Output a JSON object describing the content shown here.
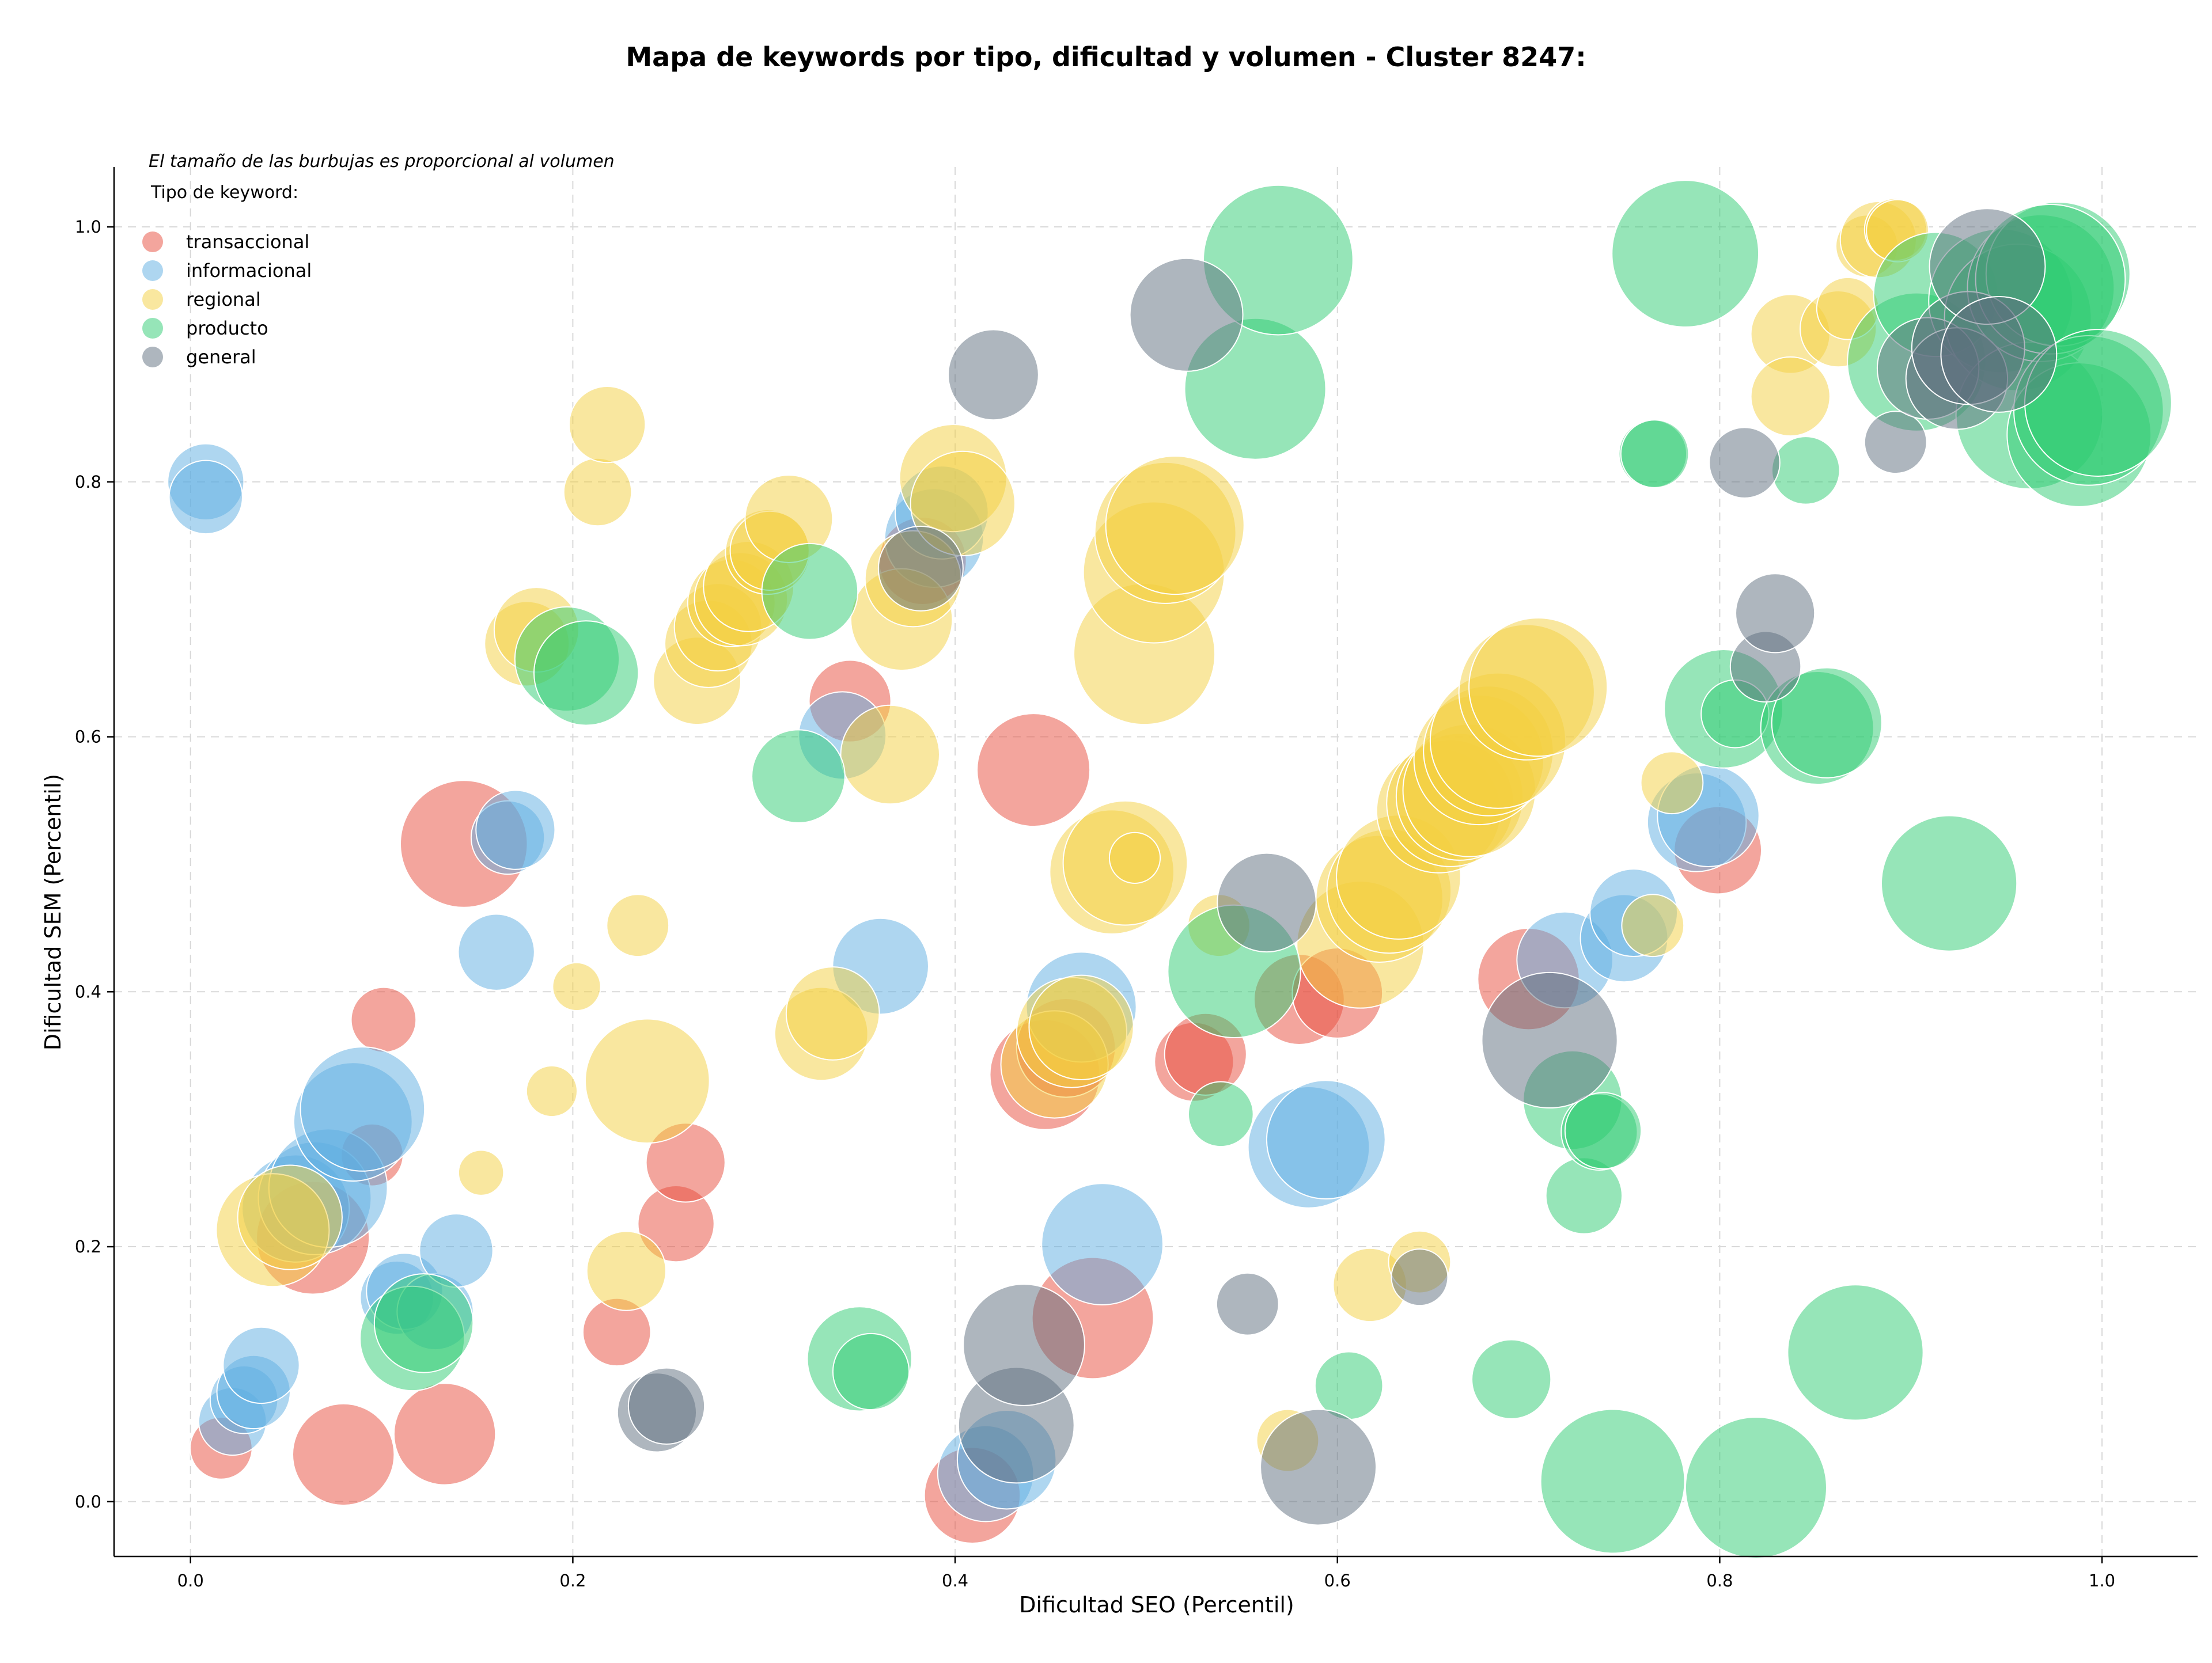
{
  "chart_data": {
    "type": "scatter",
    "title": "Mapa de keywords por tipo, dificultad y volumen - Cluster 8247:",
    "xlabel": "Dificultad SEO (Percentil)",
    "ylabel": "Dificultad SEM (Percentil)",
    "xlim": [
      -0.04,
      1.05
    ],
    "ylim": [
      -0.043,
      1.047
    ],
    "x_ticks": [
      "0.0",
      "0.2",
      "0.4",
      "0.6",
      "0.8",
      "1.0"
    ],
    "y_ticks": [
      "0.0",
      "0.2",
      "0.4",
      "0.6",
      "0.8",
      "1.0"
    ],
    "grid": true,
    "note": "El tamaño de las burbujas es proporcional al volumen",
    "legend": {
      "title": "Tipo de keyword:",
      "position": "top-left"
    },
    "series": [
      {
        "name": "transaccional",
        "color": "#e74c3c",
        "points": [
          {
            "x": 0.016,
            "y": 0.042,
            "r": 22
          },
          {
            "x": 0.08,
            "y": 0.037,
            "r": 36
          },
          {
            "x": 0.133,
            "y": 0.053,
            "r": 36
          },
          {
            "x": 0.064,
            "y": 0.207,
            "r": 40
          },
          {
            "x": 0.095,
            "y": 0.272,
            "r": 22
          },
          {
            "x": 0.101,
            "y": 0.378,
            "r": 23
          },
          {
            "x": 0.143,
            "y": 0.516,
            "r": 45
          },
          {
            "x": 0.223,
            "y": 0.133,
            "r": 24
          },
          {
            "x": 0.254,
            "y": 0.218,
            "r": 27
          },
          {
            "x": 0.259,
            "y": 0.266,
            "r": 28
          },
          {
            "x": 0.345,
            "y": 0.628,
            "r": 29
          },
          {
            "x": 0.409,
            "y": 0.005,
            "r": 34
          },
          {
            "x": 0.441,
            "y": 0.574,
            "r": 40
          },
          {
            "x": 0.447,
            "y": 0.335,
            "r": 39
          },
          {
            "x": 0.458,
            "y": 0.356,
            "r": 35
          },
          {
            "x": 0.472,
            "y": 0.144,
            "r": 43
          },
          {
            "x": 0.525,
            "y": 0.345,
            "r": 28
          },
          {
            "x": 0.531,
            "y": 0.351,
            "r": 29
          },
          {
            "x": 0.58,
            "y": 0.394,
            "r": 32
          },
          {
            "x": 0.6,
            "y": 0.399,
            "r": 32
          },
          {
            "x": 0.7,
            "y": 0.41,
            "r": 36
          },
          {
            "x": 0.799,
            "y": 0.511,
            "r": 31
          },
          {
            "x": 0.383,
            "y": 0.738,
            "r": 31
          }
        ]
      },
      {
        "name": "informacional",
        "color": "#5dade2",
        "points": [
          {
            "x": 0.008,
            "y": 0.8,
            "r": 27
          },
          {
            "x": 0.008,
            "y": 0.788,
            "r": 26
          },
          {
            "x": 0.022,
            "y": 0.063,
            "r": 24
          },
          {
            "x": 0.028,
            "y": 0.08,
            "r": 24
          },
          {
            "x": 0.033,
            "y": 0.086,
            "r": 26
          },
          {
            "x": 0.037,
            "y": 0.107,
            "r": 27
          },
          {
            "x": 0.055,
            "y": 0.23,
            "r": 38
          },
          {
            "x": 0.065,
            "y": 0.238,
            "r": 40
          },
          {
            "x": 0.072,
            "y": 0.246,
            "r": 42
          },
          {
            "x": 0.085,
            "y": 0.298,
            "r": 42
          },
          {
            "x": 0.09,
            "y": 0.308,
            "r": 44
          },
          {
            "x": 0.108,
            "y": 0.16,
            "r": 26
          },
          {
            "x": 0.112,
            "y": 0.165,
            "r": 27
          },
          {
            "x": 0.128,
            "y": 0.149,
            "r": 27
          },
          {
            "x": 0.139,
            "y": 0.197,
            "r": 26
          },
          {
            "x": 0.16,
            "y": 0.431,
            "r": 27
          },
          {
            "x": 0.166,
            "y": 0.521,
            "r": 26
          },
          {
            "x": 0.17,
            "y": 0.527,
            "r": 28
          },
          {
            "x": 0.341,
            "y": 0.601,
            "r": 31
          },
          {
            "x": 0.361,
            "y": 0.42,
            "r": 34
          },
          {
            "x": 0.389,
            "y": 0.756,
            "r": 35
          },
          {
            "x": 0.393,
            "y": 0.776,
            "r": 33
          },
          {
            "x": 0.416,
            "y": 0.022,
            "r": 34
          },
          {
            "x": 0.427,
            "y": 0.033,
            "r": 35
          },
          {
            "x": 0.466,
            "y": 0.388,
            "r": 39
          },
          {
            "x": 0.477,
            "y": 0.202,
            "r": 43
          },
          {
            "x": 0.585,
            "y": 0.278,
            "r": 43
          },
          {
            "x": 0.594,
            "y": 0.284,
            "r": 42
          },
          {
            "x": 0.719,
            "y": 0.425,
            "r": 34
          },
          {
            "x": 0.75,
            "y": 0.442,
            "r": 31
          },
          {
            "x": 0.755,
            "y": 0.462,
            "r": 31
          },
          {
            "x": 0.788,
            "y": 0.533,
            "r": 35
          },
          {
            "x": 0.794,
            "y": 0.538,
            "r": 36
          }
        ]
      },
      {
        "name": "regional",
        "color": "#f4d03f",
        "points": [
          {
            "x": 0.043,
            "y": 0.213,
            "r": 40
          },
          {
            "x": 0.052,
            "y": 0.223,
            "r": 37
          },
          {
            "x": 0.152,
            "y": 0.258,
            "r": 16
          },
          {
            "x": 0.176,
            "y": 0.673,
            "r": 30
          },
          {
            "x": 0.181,
            "y": 0.684,
            "r": 30
          },
          {
            "x": 0.189,
            "y": 0.322,
            "r": 18
          },
          {
            "x": 0.202,
            "y": 0.404,
            "r": 17
          },
          {
            "x": 0.213,
            "y": 0.792,
            "r": 24
          },
          {
            "x": 0.218,
            "y": 0.845,
            "r": 27
          },
          {
            "x": 0.228,
            "y": 0.181,
            "r": 28
          },
          {
            "x": 0.234,
            "y": 0.452,
            "r": 22
          },
          {
            "x": 0.239,
            "y": 0.33,
            "r": 44
          },
          {
            "x": 0.265,
            "y": 0.644,
            "r": 31
          },
          {
            "x": 0.271,
            "y": 0.673,
            "r": 31
          },
          {
            "x": 0.276,
            "y": 0.686,
            "r": 31
          },
          {
            "x": 0.283,
            "y": 0.705,
            "r": 31
          },
          {
            "x": 0.288,
            "y": 0.708,
            "r": 33
          },
          {
            "x": 0.292,
            "y": 0.718,
            "r": 32
          },
          {
            "x": 0.302,
            "y": 0.745,
            "r": 30
          },
          {
            "x": 0.303,
            "y": 0.746,
            "r": 28
          },
          {
            "x": 0.313,
            "y": 0.771,
            "r": 31
          },
          {
            "x": 0.33,
            "y": 0.367,
            "r": 33
          },
          {
            "x": 0.336,
            "y": 0.383,
            "r": 33
          },
          {
            "x": 0.366,
            "y": 0.586,
            "r": 35
          },
          {
            "x": 0.372,
            "y": 0.692,
            "r": 36
          },
          {
            "x": 0.378,
            "y": 0.724,
            "r": 34
          },
          {
            "x": 0.399,
            "y": 0.803,
            "r": 38
          },
          {
            "x": 0.404,
            "y": 0.783,
            "r": 37
          },
          {
            "x": 0.452,
            "y": 0.343,
            "r": 38
          },
          {
            "x": 0.461,
            "y": 0.368,
            "r": 39
          },
          {
            "x": 0.466,
            "y": 0.372,
            "r": 37
          },
          {
            "x": 0.482,
            "y": 0.494,
            "r": 44
          },
          {
            "x": 0.489,
            "y": 0.501,
            "r": 44
          },
          {
            "x": 0.494,
            "y": 0.505,
            "r": 18
          },
          {
            "x": 0.499,
            "y": 0.665,
            "r": 50
          },
          {
            "x": 0.504,
            "y": 0.729,
            "r": 50
          },
          {
            "x": 0.51,
            "y": 0.76,
            "r": 50
          },
          {
            "x": 0.515,
            "y": 0.766,
            "r": 49
          },
          {
            "x": 0.538,
            "y": 0.452,
            "r": 22
          },
          {
            "x": 0.574,
            "y": 0.048,
            "r": 22
          },
          {
            "x": 0.612,
            "y": 0.437,
            "r": 45
          },
          {
            "x": 0.617,
            "y": 0.17,
            "r": 26
          },
          {
            "x": 0.622,
            "y": 0.473,
            "r": 45
          },
          {
            "x": 0.627,
            "y": 0.479,
            "r": 44
          },
          {
            "x": 0.632,
            "y": 0.49,
            "r": 44
          },
          {
            "x": 0.643,
            "y": 0.188,
            "r": 22
          },
          {
            "x": 0.653,
            "y": 0.542,
            "r": 44
          },
          {
            "x": 0.659,
            "y": 0.548,
            "r": 45
          },
          {
            "x": 0.664,
            "y": 0.553,
            "r": 45
          },
          {
            "x": 0.669,
            "y": 0.558,
            "r": 47
          },
          {
            "x": 0.674,
            "y": 0.582,
            "r": 46
          },
          {
            "x": 0.679,
            "y": 0.589,
            "r": 46
          },
          {
            "x": 0.684,
            "y": 0.597,
            "r": 48
          },
          {
            "x": 0.699,
            "y": 0.635,
            "r": 48
          },
          {
            "x": 0.705,
            "y": 0.639,
            "r": 49
          },
          {
            "x": 0.775,
            "y": 0.564,
            "r": 22
          },
          {
            "x": 0.765,
            "y": 0.452,
            "r": 22
          },
          {
            "x": 0.837,
            "y": 0.916,
            "r": 28
          },
          {
            "x": 0.837,
            "y": 0.867,
            "r": 28
          },
          {
            "x": 0.862,
            "y": 0.92,
            "r": 27
          },
          {
            "x": 0.867,
            "y": 0.936,
            "r": 22
          },
          {
            "x": 0.877,
            "y": 0.985,
            "r": 22
          },
          {
            "x": 0.883,
            "y": 0.99,
            "r": 27
          },
          {
            "x": 0.892,
            "y": 0.998,
            "r": 22
          },
          {
            "x": 0.893,
            "y": 0.997,
            "r": 22
          }
        ]
      },
      {
        "name": "producto",
        "color": "#2ecc71",
        "points": [
          {
            "x": 0.116,
            "y": 0.128,
            "r": 37
          },
          {
            "x": 0.122,
            "y": 0.14,
            "r": 35
          },
          {
            "x": 0.197,
            "y": 0.661,
            "r": 37
          },
          {
            "x": 0.207,
            "y": 0.65,
            "r": 37
          },
          {
            "x": 0.318,
            "y": 0.569,
            "r": 33
          },
          {
            "x": 0.324,
            "y": 0.714,
            "r": 34
          },
          {
            "x": 0.35,
            "y": 0.112,
            "r": 37
          },
          {
            "x": 0.356,
            "y": 0.102,
            "r": 27
          },
          {
            "x": 0.539,
            "y": 0.304,
            "r": 23
          },
          {
            "x": 0.546,
            "y": 0.416,
            "r": 47
          },
          {
            "x": 0.557,
            "y": 0.873,
            "r": 50
          },
          {
            "x": 0.569,
            "y": 0.974,
            "r": 53
          },
          {
            "x": 0.606,
            "y": 0.091,
            "r": 24
          },
          {
            "x": 0.691,
            "y": 0.096,
            "r": 28
          },
          {
            "x": 0.723,
            "y": 0.315,
            "r": 35
          },
          {
            "x": 0.729,
            "y": 0.24,
            "r": 27
          },
          {
            "x": 0.737,
            "y": 0.29,
            "r": 27
          },
          {
            "x": 0.739,
            "y": 0.291,
            "r": 27
          },
          {
            "x": 0.744,
            "y": 0.016,
            "r": 51
          },
          {
            "x": 0.765,
            "y": 0.822,
            "r": 24
          },
          {
            "x": 0.766,
            "y": 0.822,
            "r": 24
          },
          {
            "x": 0.782,
            "y": 0.979,
            "r": 52
          },
          {
            "x": 0.802,
            "y": 0.622,
            "r": 42
          },
          {
            "x": 0.808,
            "y": 0.618,
            "r": 24
          },
          {
            "x": 0.819,
            "y": 0.011,
            "r": 50
          },
          {
            "x": 0.845,
            "y": 0.809,
            "r": 24
          },
          {
            "x": 0.851,
            "y": 0.607,
            "r": 40
          },
          {
            "x": 0.856,
            "y": 0.611,
            "r": 39
          },
          {
            "x": 0.871,
            "y": 0.117,
            "r": 48
          },
          {
            "x": 0.903,
            "y": 0.894,
            "r": 49
          },
          {
            "x": 0.913,
            "y": 0.947,
            "r": 44
          },
          {
            "x": 0.92,
            "y": 0.485,
            "r": 48
          },
          {
            "x": 0.947,
            "y": 0.942,
            "r": 51
          },
          {
            "x": 0.956,
            "y": 0.929,
            "r": 52
          },
          {
            "x": 0.962,
            "y": 0.852,
            "r": 52
          },
          {
            "x": 0.968,
            "y": 0.952,
            "r": 52
          },
          {
            "x": 0.977,
            "y": 0.963,
            "r": 51
          },
          {
            "x": 0.973,
            "y": 0.959,
            "r": 53
          },
          {
            "x": 0.988,
            "y": 0.837,
            "r": 51
          },
          {
            "x": 0.993,
            "y": 0.856,
            "r": 53
          },
          {
            "x": 0.998,
            "y": 0.862,
            "r": 52
          }
        ]
      },
      {
        "name": "general",
        "color": "#5d6d7e",
        "points": [
          {
            "x": 0.244,
            "y": 0.07,
            "r": 28
          },
          {
            "x": 0.249,
            "y": 0.075,
            "r": 27
          },
          {
            "x": 0.382,
            "y": 0.732,
            "r": 30
          },
          {
            "x": 0.42,
            "y": 0.884,
            "r": 32
          },
          {
            "x": 0.432,
            "y": 0.06,
            "r": 41
          },
          {
            "x": 0.436,
            "y": 0.123,
            "r": 43
          },
          {
            "x": 0.521,
            "y": 0.931,
            "r": 40
          },
          {
            "x": 0.553,
            "y": 0.155,
            "r": 22
          },
          {
            "x": 0.563,
            "y": 0.47,
            "r": 35
          },
          {
            "x": 0.59,
            "y": 0.027,
            "r": 41
          },
          {
            "x": 0.643,
            "y": 0.176,
            "r": 20
          },
          {
            "x": 0.711,
            "y": 0.362,
            "r": 48
          },
          {
            "x": 0.813,
            "y": 0.815,
            "r": 25
          },
          {
            "x": 0.824,
            "y": 0.655,
            "r": 25
          },
          {
            "x": 0.829,
            "y": 0.697,
            "r": 28
          },
          {
            "x": 0.892,
            "y": 0.831,
            "r": 22
          },
          {
            "x": 0.909,
            "y": 0.889,
            "r": 36
          },
          {
            "x": 0.924,
            "y": 0.881,
            "r": 36
          },
          {
            "x": 0.93,
            "y": 0.905,
            "r": 40
          },
          {
            "x": 0.94,
            "y": 0.969,
            "r": 41
          },
          {
            "x": 0.946,
            "y": 0.9,
            "r": 41
          }
        ]
      }
    ]
  }
}
